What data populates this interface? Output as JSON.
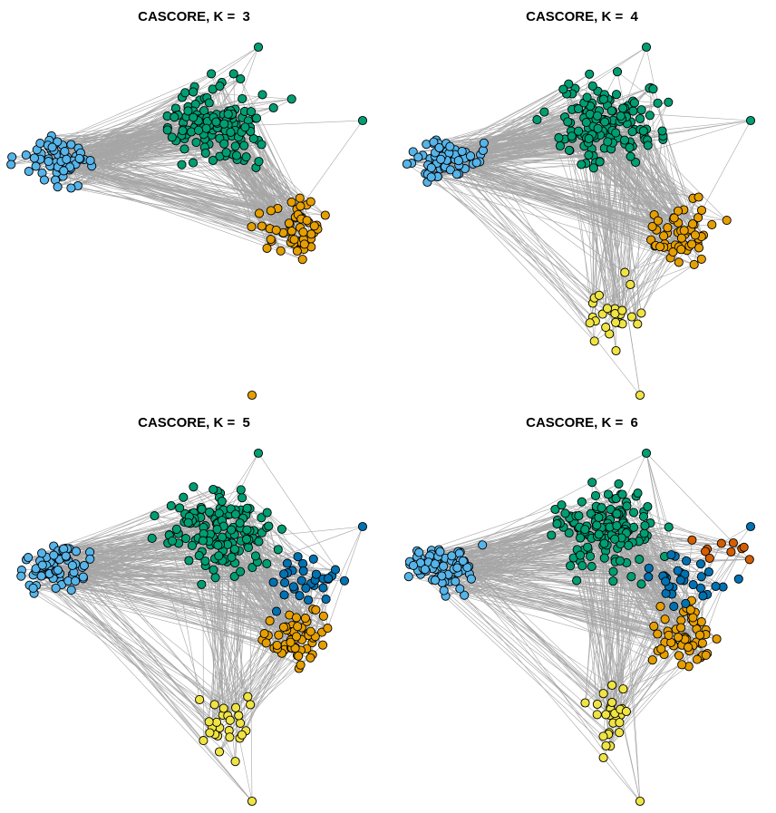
{
  "colors": {
    "edge": "#a6a6a6",
    "node_stroke": "#000000",
    "community_palette": {
      "sky_blue": "#56b4e9",
      "green": "#009e73",
      "orange": "#e69f00",
      "yellow": "#f0e442",
      "blue": "#0072b2",
      "vermillion": "#d55e00"
    }
  },
  "panels": [
    {
      "title": "CASCORE, K =  3",
      "k": 3,
      "communities": [
        "sky_blue",
        "green",
        "orange"
      ]
    },
    {
      "title": "CASCORE, K =  4",
      "k": 4,
      "communities": [
        "sky_blue",
        "green",
        "orange",
        "yellow"
      ]
    },
    {
      "title": "CASCORE, K =  5",
      "k": 5,
      "communities": [
        "sky_blue",
        "green",
        "orange",
        "yellow",
        "blue"
      ]
    },
    {
      "title": "CASCORE, K =  6",
      "k": 6,
      "communities": [
        "sky_blue",
        "green",
        "orange",
        "yellow",
        "blue",
        "vermillion"
      ]
    }
  ]
}
